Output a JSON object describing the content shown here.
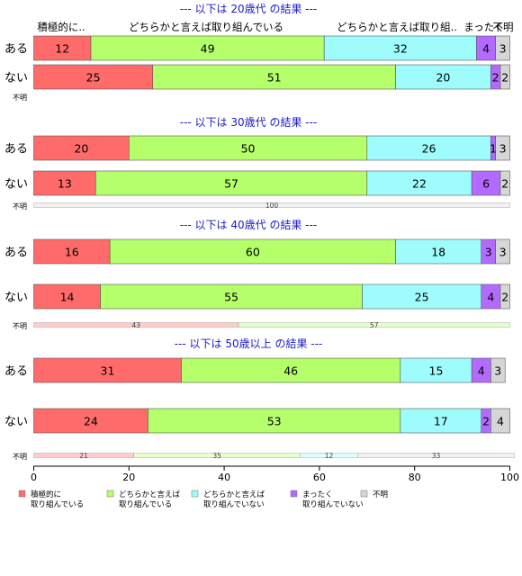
{
  "colors": {
    "title": "#1a1acc",
    "segments": [
      "#ff6b6b",
      "#b5ff6a",
      "#9ffcfc",
      "#b36bff",
      "#d6d6d6"
    ],
    "border": "#555555"
  },
  "category_header": [
    "積極的に..",
    "どちらかと言えば取り組んでいる",
    "どちらかと言えば取り組..",
    "まったく",
    "不明"
  ],
  "x_axis": {
    "ticks": [
      0,
      20,
      40,
      60,
      80,
      100
    ],
    "range": [
      0,
      100
    ]
  },
  "legend": [
    {
      "label": [
        "積極的に",
        "取り組んでいる"
      ]
    },
    {
      "label": [
        "どちらかと言えば",
        "取り組んでいる"
      ]
    },
    {
      "label": [
        "どちらかと言えば",
        "取り組んでいない"
      ]
    },
    {
      "label": [
        "まったく",
        "取り組んでいない"
      ]
    },
    {
      "label": [
        "不明"
      ]
    }
  ],
  "chart_data": {
    "type": "bar",
    "orientation": "horizontal-stacked-percent",
    "categories": [
      "積極的に取り組んでいる",
      "どちらかと言えば取り組んでいる",
      "どちらかと言えば取り組んでいない",
      "まったく取り組んでいない",
      "不明"
    ],
    "panels": [
      {
        "title": "--- 以下は 20歳代 の結果 ---",
        "rows": [
          {
            "label": "ある",
            "values": [
              12,
              49,
              32,
              4,
              3
            ]
          },
          {
            "label": "ない",
            "values": [
              25,
              51,
              20,
              2,
              2
            ]
          }
        ],
        "missing": {
          "label": "不明",
          "values": [],
          "labels": []
        }
      },
      {
        "title": "--- 以下は 30歳代 の結果 ---",
        "rows": [
          {
            "label": "ある",
            "values": [
              20,
              50,
              26,
              1,
              3
            ]
          },
          {
            "label": "ない",
            "values": [
              13,
              57,
              22,
              6,
              2
            ]
          }
        ],
        "missing": {
          "label": "不明",
          "values": [
            0,
            0,
            0,
            0,
            100
          ],
          "labels": [
            "",
            "",
            "",
            "",
            "100"
          ]
        }
      },
      {
        "title": "--- 以下は 40歳代 の結果 ---",
        "rows": [
          {
            "label": "ある",
            "values": [
              16,
              60,
              18,
              3,
              3
            ]
          },
          {
            "label": "ない",
            "values": [
              14,
              55,
              25,
              4,
              2
            ]
          }
        ],
        "missing": {
          "label": "不明",
          "values": [
            43,
            57,
            0,
            0,
            0
          ],
          "labels": [
            "43",
            "57",
            "",
            "",
            ""
          ]
        }
      },
      {
        "title": "--- 以下は 50歳以上 の結果 ---",
        "rows": [
          {
            "label": "ある",
            "values": [
              31,
              46,
              15,
              4,
              3
            ]
          },
          {
            "label": "ない",
            "values": [
              24,
              53,
              17,
              2,
              4
            ]
          }
        ],
        "missing": {
          "label": "不明",
          "values": [
            21,
            35,
            12,
            0,
            33
          ],
          "labels": [
            "21",
            "35",
            "12",
            "",
            "33"
          ]
        }
      }
    ]
  }
}
